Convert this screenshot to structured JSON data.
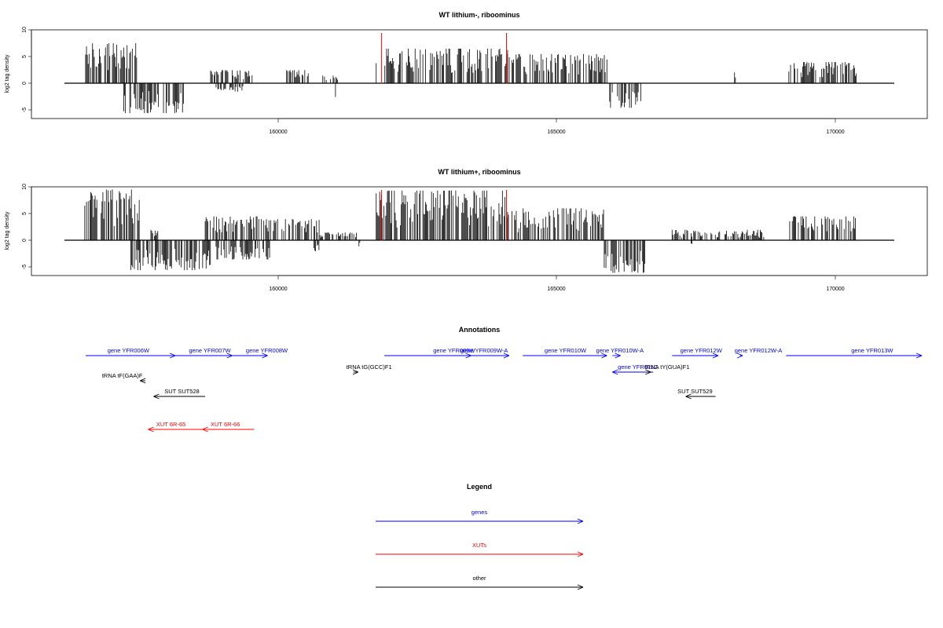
{
  "colors": {
    "signal": "#000000",
    "marker": "#ff0000",
    "genes": "#0000ff",
    "xuts": "#ff0000",
    "other": "#000000"
  },
  "x_ticks": [
    "160000",
    "165000",
    "170000"
  ],
  "chart_data": [
    {
      "type": "bar",
      "title": "WT lithium-, riboominus",
      "ylabel": "log2 tag density",
      "xlim": [
        156000,
        172500
      ],
      "ylim": [
        -6.5,
        10
      ],
      "y_ticks": [
        "10",
        "5",
        "0",
        "-5"
      ],
      "x_ticks": [
        160000,
        165000,
        170000
      ],
      "markers": [
        162450,
        164750
      ],
      "positive_regions": [
        {
          "start": 156950,
          "end": 157950,
          "max": 7.5
        },
        {
          "start": 159300,
          "end": 160100,
          "max": 2.5
        },
        {
          "start": 160700,
          "end": 161100,
          "max": 2.5
        },
        {
          "start": 161350,
          "end": 161700,
          "max": 1.5
        },
        {
          "start": 162350,
          "end": 164800,
          "max": 6.5
        },
        {
          "start": 164800,
          "end": 166600,
          "max": 5.5
        },
        {
          "start": 168950,
          "end": 168970,
          "max": 3
        },
        {
          "start": 169950,
          "end": 171200,
          "max": 4
        }
      ],
      "negative_regions": [
        {
          "start": 157700,
          "end": 158800,
          "min": -5.5
        },
        {
          "start": 159400,
          "end": 159900,
          "min": -1.5
        },
        {
          "start": 161600,
          "end": 161620,
          "min": -2.5
        },
        {
          "start": 166650,
          "end": 167250,
          "min": -4.5
        }
      ]
    },
    {
      "type": "bar",
      "title": "WT lithium+, riboominus",
      "ylabel": "log2 tag density",
      "xlim": [
        156000,
        172500
      ],
      "ylim": [
        -6.5,
        10
      ],
      "y_ticks": [
        "10",
        "5",
        "0",
        "-5"
      ],
      "x_ticks": [
        160000,
        165000,
        170000
      ],
      "markers": [
        162450,
        164750
      ],
      "positive_regions": [
        {
          "start": 156950,
          "end": 158000,
          "max": 9.5
        },
        {
          "start": 158200,
          "end": 158350,
          "max": 2
        },
        {
          "start": 159200,
          "end": 160200,
          "max": 4.5
        },
        {
          "start": 160200,
          "end": 161300,
          "max": 4
        },
        {
          "start": 161300,
          "end": 162000,
          "max": 1.5
        },
        {
          "start": 162350,
          "end": 164850,
          "max": 9.3
        },
        {
          "start": 164850,
          "end": 166550,
          "max": 6
        },
        {
          "start": 167800,
          "end": 169500,
          "max": 2
        },
        {
          "start": 169950,
          "end": 171200,
          "max": 4.5
        }
      ],
      "negative_regions": [
        {
          "start": 157800,
          "end": 159300,
          "min": -5.5
        },
        {
          "start": 159400,
          "end": 160400,
          "min": -3.5
        },
        {
          "start": 161200,
          "end": 161300,
          "min": -2
        },
        {
          "start": 162000,
          "end": 162050,
          "min": -1.5
        },
        {
          "start": 166550,
          "end": 167300,
          "min": -6
        },
        {
          "start": 168150,
          "end": 168170,
          "min": -1.5
        }
      ]
    }
  ],
  "annotations": {
    "title": "Annotations",
    "features": [
      {
        "label": "gene YFR006W",
        "class": "genes",
        "start": 157000,
        "end": 158650,
        "strand": "+",
        "row": 0,
        "label_pos": 157400
      },
      {
        "label": "gene YFR007W",
        "class": "genes",
        "start": 158600,
        "end": 159700,
        "strand": "+",
        "row": 0,
        "label_pos": 158900
      },
      {
        "label": "gene YFR008W",
        "class": "genes",
        "start": 159700,
        "end": 160350,
        "strand": "+",
        "row": 0,
        "label_pos": 159950
      },
      {
        "label": "gene YFR009W",
        "class": "genes",
        "start": 162500,
        "end": 164800,
        "strand": "+",
        "row": 0,
        "label_pos": 163400
      },
      {
        "label": "gene YFR009W-A",
        "class": "genes",
        "start": 163700,
        "end": 164100,
        "strand": "+",
        "row": 0,
        "label_pos": 163900
      },
      {
        "label": "gene YFR010W",
        "class": "genes",
        "start": 165050,
        "end": 166600,
        "strand": "+",
        "row": 0,
        "label_pos": 165450
      },
      {
        "label": "gene YFR010W-A",
        "class": "genes",
        "start": 166700,
        "end": 166850,
        "strand": "+",
        "row": 0,
        "label_pos": 166400
      },
      {
        "label": "gene YFR011C",
        "class": "genes",
        "start": 166700,
        "end": 167450,
        "strand": "-",
        "row": 1,
        "label_pos": 166800
      },
      {
        "label": "gene YFR012W",
        "class": "genes",
        "start": 167800,
        "end": 168650,
        "strand": "+",
        "row": 0,
        "label_pos": 167950
      },
      {
        "label": "gene YFR012W-A",
        "class": "genes",
        "start": 169050,
        "end": 169100,
        "strand": "+",
        "row": 0,
        "label_pos": 168950
      },
      {
        "label": "gene YFR013W",
        "class": "genes",
        "start": 169900,
        "end": 172400,
        "strand": "+",
        "row": 0,
        "label_pos": 171100
      },
      {
        "label": "tRNA tF(GAA)F",
        "class": "other",
        "start": 158000,
        "end": 158100,
        "strand": "-",
        "row": 2,
        "label_pos": 157300
      },
      {
        "label": "tRNA tG(GCC)F1",
        "class": "other",
        "start": 161930,
        "end": 162020,
        "strand": "+",
        "row": 1,
        "label_pos": 161800
      },
      {
        "label": "tRNA tY(GUA)F1",
        "class": "other",
        "start": 167320,
        "end": 167410,
        "strand": "+",
        "row": 1,
        "label_pos": 167300
      },
      {
        "label": "SUT SUT528",
        "class": "other",
        "start": 158250,
        "end": 159200,
        "strand": "-",
        "row": 3,
        "label_pos": 158450
      },
      {
        "label": "SUT SUT529",
        "class": "other",
        "start": 168050,
        "end": 168600,
        "strand": "-",
        "row": 3,
        "label_pos": 167900
      },
      {
        "label": "XUT 6R-65",
        "class": "xuts",
        "start": 158150,
        "end": 159150,
        "strand": "-",
        "row": 4,
        "label_pos": 158300
      },
      {
        "label": "XUT 6R-66",
        "class": "xuts",
        "start": 159150,
        "end": 160100,
        "strand": "-",
        "row": 4,
        "label_pos": 159300
      }
    ]
  },
  "legend": {
    "title": "Legend",
    "items": [
      {
        "label": "genes",
        "class": "genes"
      },
      {
        "label": "XUTs",
        "class": "xuts"
      },
      {
        "label": "other",
        "class": "other"
      }
    ]
  }
}
